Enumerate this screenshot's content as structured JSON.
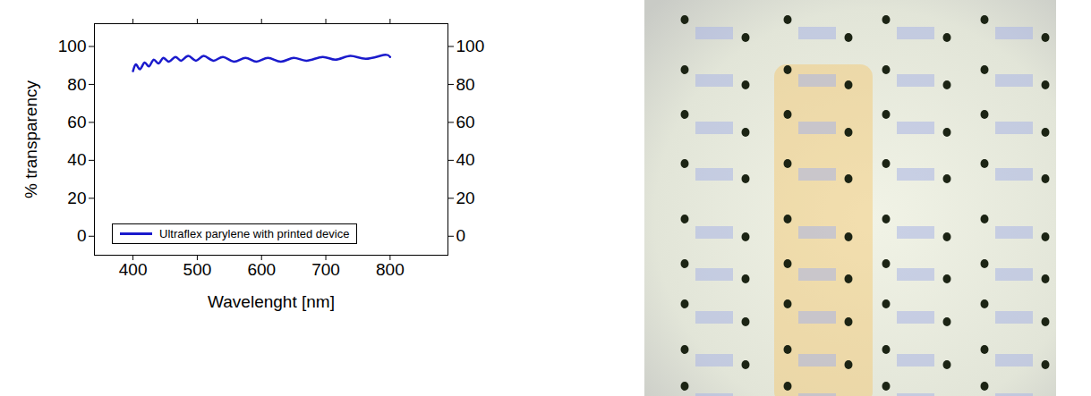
{
  "chart_data": {
    "type": "line",
    "x_label": "Wavelenght [nm]",
    "y_label": "% transparency",
    "xlim": [
      340,
      890
    ],
    "xticks": [
      400,
      500,
      600,
      700,
      800
    ],
    "ylim": [
      -10,
      112
    ],
    "yticks": [
      0,
      20,
      40,
      60,
      80,
      100
    ],
    "y2lim": [
      -10,
      112
    ],
    "y2ticks": [
      0,
      20,
      40,
      60,
      80,
      100
    ],
    "legend": "lower left",
    "x": [
      400,
      405,
      411,
      418,
      425,
      432,
      440,
      447,
      456,
      466,
      475,
      486,
      498,
      510,
      525,
      540,
      557,
      575,
      592,
      610,
      630,
      650,
      670,
      695,
      715,
      738,
      762,
      790,
      800
    ],
    "series": [
      {
        "name": "Ultraflex parylene with printed device",
        "color": "#1a1acc",
        "values": [
          87,
          90.5,
          88,
          91.5,
          89.5,
          93,
          91,
          94,
          92,
          94.5,
          92.5,
          95,
          92.5,
          95,
          92.5,
          94.5,
          92,
          94,
          92,
          94,
          92,
          94,
          92.5,
          94.5,
          93,
          95,
          93.5,
          95.5,
          94.5
        ]
      }
    ]
  }
}
